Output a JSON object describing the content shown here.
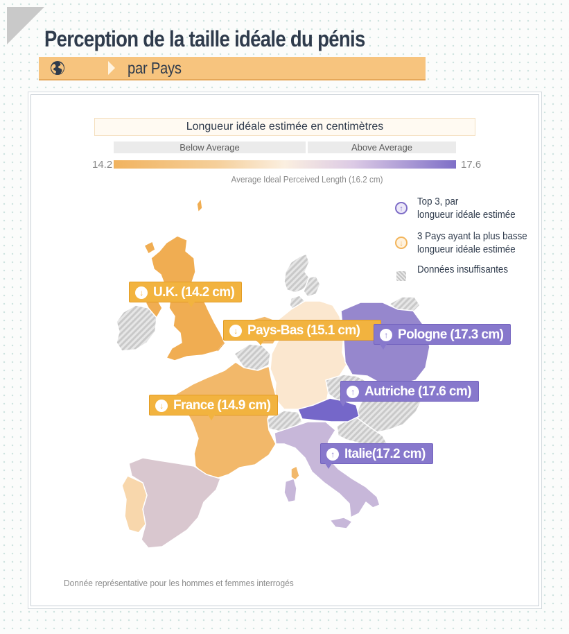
{
  "header": {
    "title": "Perception de la taille idéale du pénis",
    "subtitle": "par Pays"
  },
  "legend": {
    "scale_title": "Longueur idéale estimée en centimètres",
    "below_label": "Below Average",
    "above_label": "Above Average",
    "min": "14.2",
    "max": "17.6",
    "average_note": "Average Ideal Perceived Length (16.2 cm)",
    "colors": {
      "low": "#f1b35f",
      "mid": "#fbefe0",
      "high": "#7e6fc7"
    },
    "keys": [
      {
        "icon": "arrow-up-icon",
        "text": "Top 3, par\nlongueur idéale estimée"
      },
      {
        "icon": "arrow-down-icon",
        "text": "3 Pays ayant la plus basse\nlongueur idéale estimée"
      },
      {
        "icon": "hatch-icon",
        "text": "Données insuffisantes"
      }
    ]
  },
  "countries": {
    "uk": {
      "label": "U.K. (14.2 cm)",
      "value_cm": 14.2,
      "rank": "low"
    },
    "nl": {
      "label": "Pays-Bas (15.1 cm)",
      "value_cm": 15.1,
      "rank": "low"
    },
    "france": {
      "label": "France (14.9 cm)",
      "value_cm": 14.9,
      "rank": "low"
    },
    "pologne": {
      "label": "Pologne (17.3 cm)",
      "value_cm": 17.3,
      "rank": "high"
    },
    "autriche": {
      "label": "Autriche (17.6 cm)",
      "value_cm": 17.6,
      "rank": "high"
    },
    "italie": {
      "label": "Italie(17.2 cm)",
      "value_cm": 17.2,
      "rank": "high"
    }
  },
  "footnote": "Donnée représentative pour les hommes et femmes interrogés"
}
